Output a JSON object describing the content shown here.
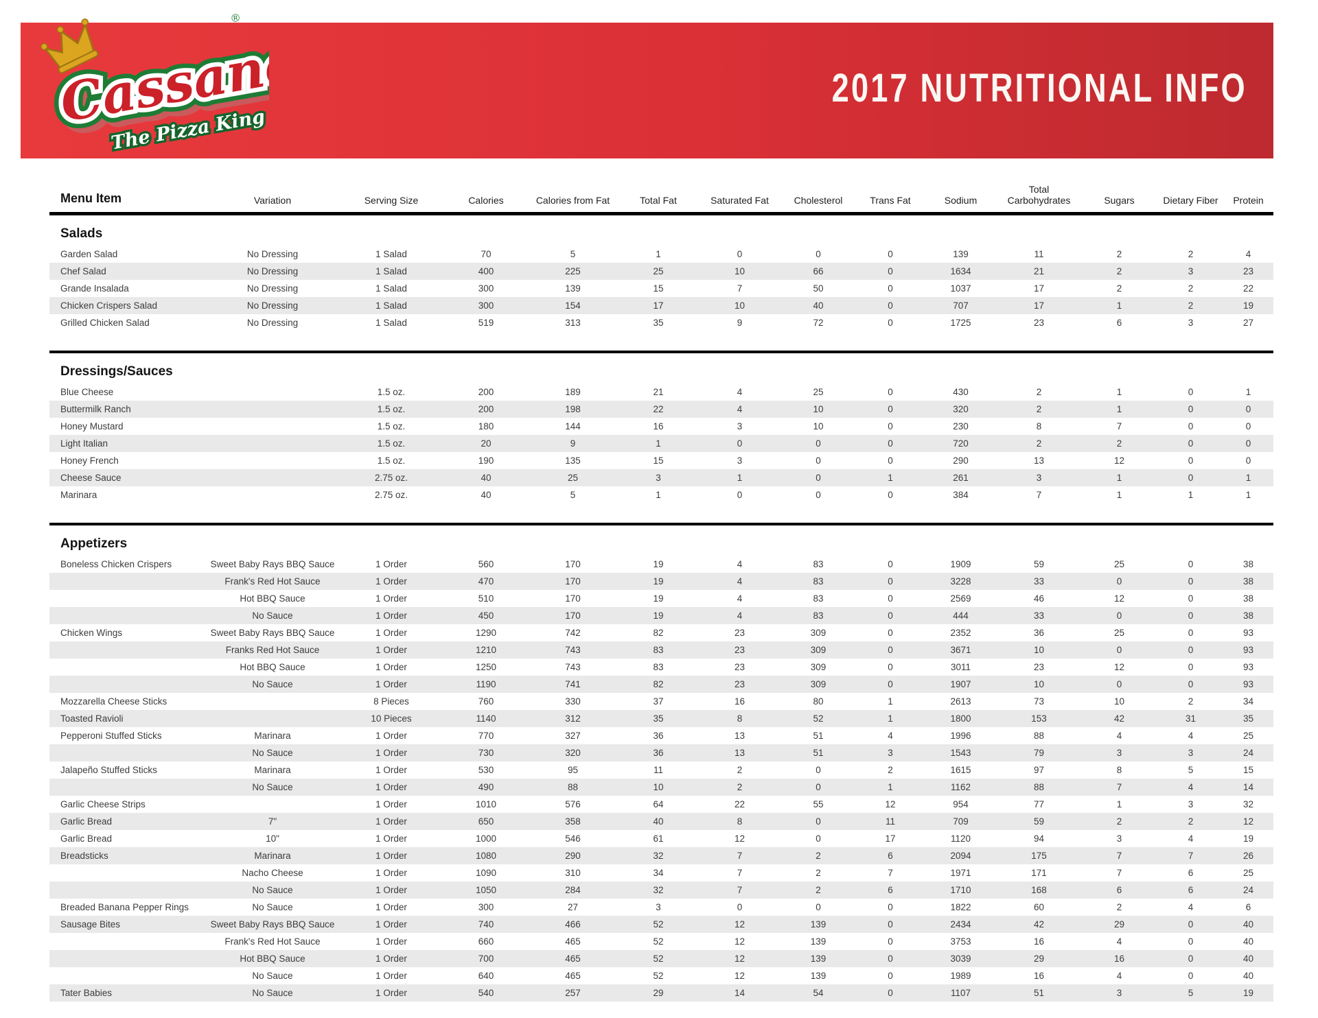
{
  "header": {
    "title": "2017 NUTRITIONAL INFO",
    "logo": {
      "brand": "Cassano's",
      "tagline": "The Pizza King",
      "registered_mark": "®"
    }
  },
  "colors": {
    "banner_red_left": "#e83a3d",
    "banner_red_right": "#bd2a2f",
    "logo_red": "#cb2129",
    "logo_green": "#1e7c35",
    "crown_gold": "#dba520",
    "row_shade": "#e9e9e9",
    "rule_black": "#000000"
  },
  "table": {
    "columns": [
      "Menu Item",
      "Variation",
      "Serving Size",
      "Calories",
      "Calories from Fat",
      "Total Fat",
      "Saturated Fat",
      "Cholesterol",
      "Trans Fat",
      "Sodium",
      "Total Carbohydrates",
      "Sugars",
      "Dietary Fiber",
      "Protein"
    ],
    "sections": [
      {
        "name": "Salads",
        "rows": [
          [
            "Garden Salad",
            "No Dressing",
            "1 Salad",
            "70",
            "5",
            "1",
            "0",
            "0",
            "0",
            "139",
            "11",
            "2",
            "2",
            "4"
          ],
          [
            "Chef Salad",
            "No Dressing",
            "1 Salad",
            "400",
            "225",
            "25",
            "10",
            "66",
            "0",
            "1634",
            "21",
            "2",
            "3",
            "23"
          ],
          [
            "Grande Insalada",
            "No Dressing",
            "1 Salad",
            "300",
            "139",
            "15",
            "7",
            "50",
            "0",
            "1037",
            "17",
            "2",
            "2",
            "22"
          ],
          [
            "Chicken Crispers Salad",
            "No Dressing",
            "1 Salad",
            "300",
            "154",
            "17",
            "10",
            "40",
            "0",
            "707",
            "17",
            "1",
            "2",
            "19"
          ],
          [
            "Grilled Chicken Salad",
            "No Dressing",
            "1 Salad",
            "519",
            "313",
            "35",
            "9",
            "72",
            "0",
            "1725",
            "23",
            "6",
            "3",
            "27"
          ]
        ]
      },
      {
        "name": "Dressings/Sauces",
        "rows": [
          [
            "Blue Cheese",
            "",
            "1.5 oz.",
            "200",
            "189",
            "21",
            "4",
            "25",
            "0",
            "430",
            "2",
            "1",
            "0",
            "1"
          ],
          [
            "Buttermilk Ranch",
            "",
            "1.5 oz.",
            "200",
            "198",
            "22",
            "4",
            "10",
            "0",
            "320",
            "2",
            "1",
            "0",
            "0"
          ],
          [
            "Honey Mustard",
            "",
            "1.5 oz.",
            "180",
            "144",
            "16",
            "3",
            "10",
            "0",
            "230",
            "8",
            "7",
            "0",
            "0"
          ],
          [
            "Light Italian",
            "",
            "1.5 oz.",
            "20",
            "9",
            "1",
            "0",
            "0",
            "0",
            "720",
            "2",
            "2",
            "0",
            "0"
          ],
          [
            "Honey French",
            "",
            "1.5 oz.",
            "190",
            "135",
            "15",
            "3",
            "0",
            "0",
            "290",
            "13",
            "12",
            "0",
            "0"
          ],
          [
            "Cheese Sauce",
            "",
            "2.75 oz.",
            "40",
            "25",
            "3",
            "1",
            "0",
            "1",
            "261",
            "3",
            "1",
            "0",
            "1"
          ],
          [
            "Marinara",
            "",
            "2.75 oz.",
            "40",
            "5",
            "1",
            "0",
            "0",
            "0",
            "384",
            "7",
            "1",
            "1",
            "1"
          ]
        ]
      },
      {
        "name": "Appetizers",
        "rows": [
          [
            "Boneless Chicken Crispers",
            "Sweet Baby Rays BBQ Sauce",
            "1 Order",
            "560",
            "170",
            "19",
            "4",
            "83",
            "0",
            "1909",
            "59",
            "25",
            "0",
            "38"
          ],
          [
            "",
            "Frank's Red Hot Sauce",
            "1 Order",
            "470",
            "170",
            "19",
            "4",
            "83",
            "0",
            "3228",
            "33",
            "0",
            "0",
            "38"
          ],
          [
            "",
            "Hot BBQ Sauce",
            "1 Order",
            "510",
            "170",
            "19",
            "4",
            "83",
            "0",
            "2569",
            "46",
            "12",
            "0",
            "38"
          ],
          [
            "",
            "No Sauce",
            "1 Order",
            "450",
            "170",
            "19",
            "4",
            "83",
            "0",
            "444",
            "33",
            "0",
            "0",
            "38"
          ],
          [
            "Chicken Wings",
            "Sweet Baby Rays BBQ Sauce",
            "1 Order",
            "1290",
            "742",
            "82",
            "23",
            "309",
            "0",
            "2352",
            "36",
            "25",
            "0",
            "93"
          ],
          [
            "",
            "Franks Red Hot Sauce",
            "1 Order",
            "1210",
            "743",
            "83",
            "23",
            "309",
            "0",
            "3671",
            "10",
            "0",
            "0",
            "93"
          ],
          [
            "",
            "Hot BBQ Sauce",
            "1 Order",
            "1250",
            "743",
            "83",
            "23",
            "309",
            "0",
            "3011",
            "23",
            "12",
            "0",
            "93"
          ],
          [
            "",
            "No Sauce",
            "1 Order",
            "1190",
            "741",
            "82",
            "23",
            "309",
            "0",
            "1907",
            "10",
            "0",
            "0",
            "93"
          ],
          [
            "Mozzarella Cheese Sticks",
            "",
            "8 Pieces",
            "760",
            "330",
            "37",
            "16",
            "80",
            "1",
            "2613",
            "73",
            "10",
            "2",
            "34"
          ],
          [
            "Toasted Ravioli",
            "",
            "10 Pieces",
            "1140",
            "312",
            "35",
            "8",
            "52",
            "1",
            "1800",
            "153",
            "42",
            "31",
            "35"
          ],
          [
            "Pepperoni Stuffed Sticks",
            "Marinara",
            "1 Order",
            "770",
            "327",
            "36",
            "13",
            "51",
            "4",
            "1996",
            "88",
            "4",
            "4",
            "25"
          ],
          [
            "",
            "No Sauce",
            "1 Order",
            "730",
            "320",
            "36",
            "13",
            "51",
            "3",
            "1543",
            "79",
            "3",
            "3",
            "24"
          ],
          [
            "Jalapeño Stuffed Sticks",
            "Marinara",
            "1 Order",
            "530",
            "95",
            "11",
            "2",
            "0",
            "2",
            "1615",
            "97",
            "8",
            "5",
            "15"
          ],
          [
            "",
            "No Sauce",
            "1 Order",
            "490",
            "88",
            "10",
            "2",
            "0",
            "1",
            "1162",
            "88",
            "7",
            "4",
            "14"
          ],
          [
            "Garlic Cheese Strips",
            "",
            "1 Order",
            "1010",
            "576",
            "64",
            "22",
            "55",
            "12",
            "954",
            "77",
            "1",
            "3",
            "32"
          ],
          [
            "Garlic Bread",
            "7\"",
            "1 Order",
            "650",
            "358",
            "40",
            "8",
            "0",
            "11",
            "709",
            "59",
            "2",
            "2",
            "12"
          ],
          [
            "Garlic Bread",
            "10\"",
            "1 Order",
            "1000",
            "546",
            "61",
            "12",
            "0",
            "17",
            "1120",
            "94",
            "3",
            "4",
            "19"
          ],
          [
            "Breadsticks",
            "Marinara",
            "1 Order",
            "1080",
            "290",
            "32",
            "7",
            "2",
            "6",
            "2094",
            "175",
            "7",
            "7",
            "26"
          ],
          [
            "",
            "Nacho Cheese",
            "1 Order",
            "1090",
            "310",
            "34",
            "7",
            "2",
            "7",
            "1971",
            "171",
            "7",
            "6",
            "25"
          ],
          [
            "",
            "No Sauce",
            "1 Order",
            "1050",
            "284",
            "32",
            "7",
            "2",
            "6",
            "1710",
            "168",
            "6",
            "6",
            "24"
          ],
          [
            "Breaded Banana Pepper Rings",
            "No Sauce",
            "1 Order",
            "300",
            "27",
            "3",
            "0",
            "0",
            "0",
            "1822",
            "60",
            "2",
            "4",
            "6"
          ],
          [
            "Sausage Bites",
            "Sweet Baby Rays BBQ Sauce",
            "1 Order",
            "740",
            "466",
            "52",
            "12",
            "139",
            "0",
            "2434",
            "42",
            "29",
            "0",
            "40"
          ],
          [
            "",
            "Frank's Red Hot Sauce",
            "1 Order",
            "660",
            "465",
            "52",
            "12",
            "139",
            "0",
            "3753",
            "16",
            "4",
            "0",
            "40"
          ],
          [
            "",
            "Hot BBQ Sauce",
            "1 Order",
            "700",
            "465",
            "52",
            "12",
            "139",
            "0",
            "3039",
            "29",
            "16",
            "0",
            "40"
          ],
          [
            "",
            "No Sauce",
            "1 Order",
            "640",
            "465",
            "52",
            "12",
            "139",
            "0",
            "1989",
            "16",
            "4",
            "0",
            "40"
          ],
          [
            "Tater Babies",
            "No Sauce",
            "1 Order",
            "540",
            "257",
            "29",
            "14",
            "54",
            "0",
            "1107",
            "51",
            "3",
            "5",
            "19"
          ]
        ]
      }
    ]
  }
}
